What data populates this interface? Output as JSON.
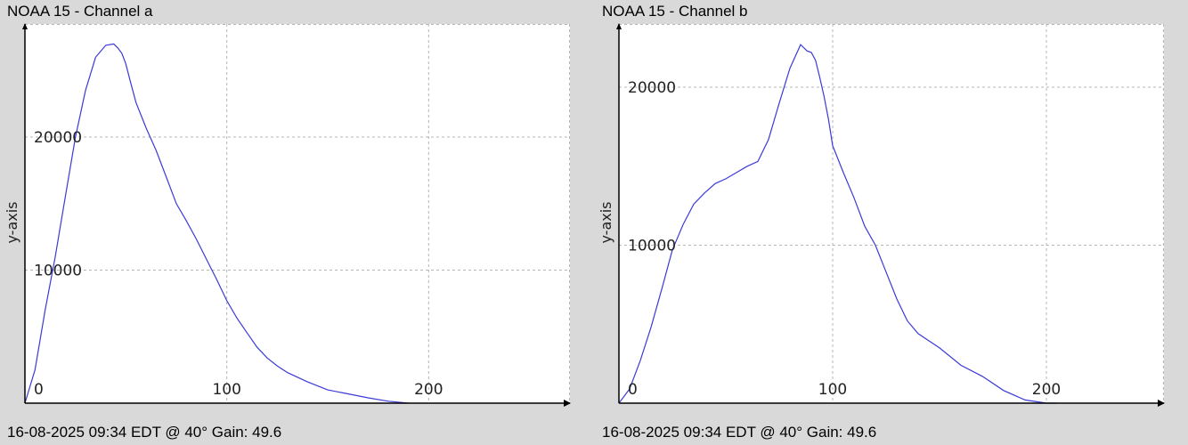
{
  "charts": [
    {
      "title": "NOAA 15 - Channel a",
      "footer": "16-08-2025 09:34 EDT @ 40° Gain: 49.6"
    },
    {
      "title": "NOAA 15 - Channel b",
      "footer": "16-08-2025 09:34 EDT @ 40° Gain: 49.6"
    }
  ],
  "chart_data": [
    {
      "type": "line",
      "title": "NOAA 15 - Channel a",
      "ylabel": "y-axis",
      "xlabel": "",
      "xlim": [
        0,
        270
      ],
      "ylim": [
        0,
        28500
      ],
      "xticks": [
        0,
        100,
        200
      ],
      "yticks": [
        10000,
        20000
      ],
      "grid": true,
      "color": "#3a3ad8",
      "series": [
        {
          "x": [
            0,
            5,
            10,
            15,
            20,
            25,
            30,
            35,
            40,
            44,
            46,
            48,
            50,
            52,
            55,
            60,
            65,
            70,
            75,
            80,
            85,
            90,
            95,
            100,
            105,
            110,
            115,
            120,
            125,
            130,
            140,
            150,
            160,
            170,
            180,
            190
          ],
          "y": [
            0,
            2500,
            7000,
            11000,
            15500,
            20000,
            23500,
            26000,
            26900,
            27000,
            26700,
            26300,
            25500,
            24300,
            22600,
            20700,
            19000,
            17000,
            15000,
            13700,
            12300,
            10800,
            9300,
            7700,
            6400,
            5300,
            4200,
            3400,
            2800,
            2300,
            1600,
            1000,
            700,
            400,
            150,
            0
          ]
        }
      ]
    },
    {
      "type": "line",
      "title": "NOAA 15 - Channel b",
      "ylabel": "y-axis",
      "xlabel": "",
      "xlim": [
        0,
        255
      ],
      "ylim": [
        0,
        24000
      ],
      "xticks": [
        0,
        100,
        200
      ],
      "yticks": [
        10000,
        20000
      ],
      "grid": true,
      "color": "#3a3ad8",
      "series": [
        {
          "x": [
            0,
            5,
            10,
            15,
            20,
            25,
            30,
            35,
            40,
            45,
            50,
            55,
            60,
            65,
            70,
            75,
            80,
            85,
            88,
            90,
            92,
            94,
            96,
            98,
            100,
            105,
            110,
            115,
            120,
            125,
            130,
            135,
            140,
            150,
            160,
            170,
            180,
            190,
            200,
            205
          ],
          "y": [
            0,
            900,
            2700,
            4800,
            7200,
            9700,
            11300,
            12600,
            13300,
            13900,
            14200,
            14600,
            15000,
            15300,
            16700,
            19000,
            21200,
            22700,
            22300,
            22200,
            21700,
            20600,
            19400,
            18000,
            16300,
            14600,
            13000,
            11200,
            10000,
            8300,
            6600,
            5200,
            4400,
            3500,
            2400,
            1700,
            800,
            200,
            0,
            0
          ]
        }
      ]
    }
  ]
}
